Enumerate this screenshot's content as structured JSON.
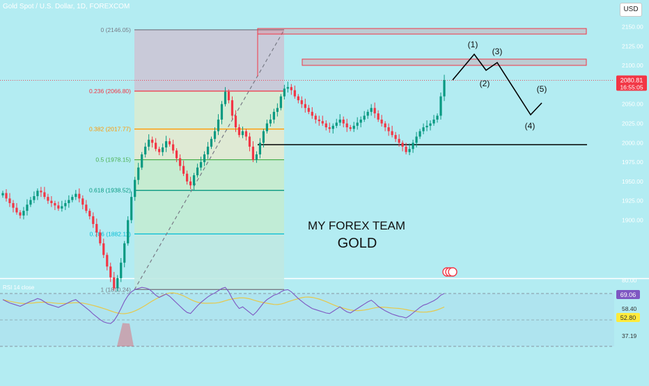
{
  "header": {
    "title": "Gold Spot / U.S. Dollar, 1D, FOREXCOM",
    "currency": "USD"
  },
  "overlay_text": {
    "team": "MY FOREX TEAM",
    "asset": "GOLD"
  },
  "price_axis": {
    "ticks": [
      "2150.00",
      "2125.00",
      "2100.00",
      "2050.00",
      "2025.00",
      "2000.00",
      "1975.00",
      "1950.00",
      "1925.00",
      "1900.00"
    ]
  },
  "last_price": {
    "value": "2080.81",
    "countdown": "16:55:05",
    "color": "#f23645"
  },
  "fibonacci": {
    "levels": [
      {
        "label": "0 (2146.05)",
        "color": "#787b86"
      },
      {
        "label": "0.236 (2066.80)",
        "color": "#f23645"
      },
      {
        "label": "0.382 (2017.77)",
        "color": "#ff9800"
      },
      {
        "label": "0.5 (1978.15)",
        "color": "#4caf50"
      },
      {
        "label": "0.618 (1938.52)",
        "color": "#089981"
      },
      {
        "label": "0.786 (1882.11)",
        "color": "#00bcd4"
      },
      {
        "label": "1 (1810.24)",
        "color": "#787b86"
      }
    ]
  },
  "waves": [
    "(1)",
    "(2)",
    "(3)",
    "(4)",
    "(5)"
  ],
  "rsi": {
    "label": "RSI 14 close",
    "values": {
      "rsi": "69.06",
      "ma": "52.80",
      "upper": "58.40",
      "lower": "37.19"
    },
    "top": "80.00"
  },
  "colors": {
    "up": "#089981",
    "down": "#f23645",
    "rsi_line": "#7e57c2",
    "rsi_ma": "#e6c84a",
    "bg": "#b3ecf2"
  },
  "chart_data": {
    "type": "candlestick",
    "title": "Gold Spot / U.S. Dollar, 1D, FOREXCOM",
    "ylim": [
      1800,
      2160
    ],
    "close_series": [
      1935,
      1928,
      1922,
      1916,
      1910,
      1906,
      1912,
      1920,
      1926,
      1931,
      1938,
      1936,
      1930,
      1925,
      1922,
      1919,
      1915,
      1918,
      1922,
      1926,
      1930,
      1934,
      1928,
      1920,
      1912,
      1905,
      1895,
      1884,
      1870,
      1855,
      1840,
      1826,
      1812,
      1825,
      1845,
      1870,
      1900,
      1930,
      1952,
      1968,
      1985,
      1995,
      2004,
      2000,
      1992,
      1988,
      1994,
      2002,
      1998,
      1990,
      1980,
      1970,
      1960,
      1950,
      1945,
      1958,
      1968,
      1975,
      1985,
      1995,
      2005,
      2015,
      2030,
      2050,
      2066,
      2055,
      2035,
      2020,
      2010,
      2015,
      2008,
      1995,
      1978,
      1985,
      2000,
      2015,
      2025,
      2030,
      2040,
      2045,
      2060,
      2070,
      2072,
      2068,
      2060,
      2055,
      2050,
      2045,
      2040,
      2035,
      2030,
      2028,
      2025,
      2020,
      2018,
      2022,
      2026,
      2030,
      2025,
      2020,
      2018,
      2022,
      2026,
      2030,
      2035,
      2040,
      2045,
      2038,
      2030,
      2025,
      2020,
      2015,
      2010,
      2005,
      2000,
      1995,
      1988,
      1992,
      2000,
      2008,
      2015,
      2020,
      2022,
      2025,
      2030,
      2035,
      2060,
      2081
    ],
    "rsi_series": [
      58,
      55,
      52,
      50,
      48,
      46,
      49,
      52,
      55,
      57,
      60,
      58,
      54,
      50,
      48,
      46,
      44,
      47,
      50,
      53,
      56,
      58,
      53,
      48,
      43,
      38,
      32,
      27,
      22,
      18,
      16,
      15,
      20,
      30,
      42,
      55,
      65,
      72,
      76,
      78,
      80,
      79,
      77,
      72,
      66,
      62,
      65,
      68,
      64,
      58,
      52,
      46,
      40,
      35,
      33,
      40,
      47,
      53,
      58,
      63,
      67,
      70,
      74,
      78,
      80,
      72,
      60,
      50,
      42,
      45,
      40,
      35,
      30,
      36,
      44,
      52,
      58,
      62,
      66,
      68,
      72,
      75,
      76,
      72,
      66,
      60,
      55,
      50,
      46,
      42,
      40,
      38,
      36,
      34,
      33,
      37,
      41,
      45,
      40,
      36,
      34,
      38,
      42,
      46,
      50,
      54,
      57,
      52,
      46,
      42,
      38,
      35,
      32,
      30,
      28,
      27,
      25,
      29,
      34,
      39,
      44,
      48,
      50,
      53,
      56,
      60,
      66,
      69.06
    ]
  }
}
